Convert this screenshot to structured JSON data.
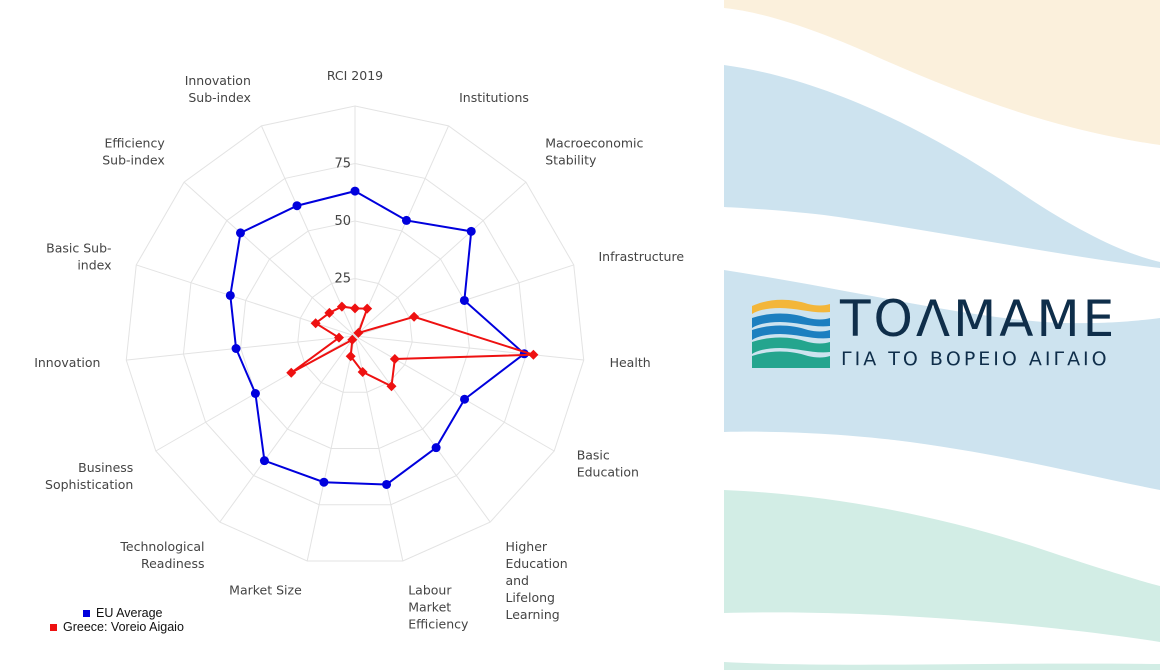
{
  "chart_data": {
    "type": "radar",
    "axes": [
      "RCI 2019",
      "Institutions",
      "Macroeconomic\nStability",
      "Infrastructure",
      "Health",
      "Basic\nEducation",
      "Higher\nEducation\nand\nLifelong\nLearning",
      "Labour\nMarket\nEfficiency",
      "Market Size",
      "Technological\nReadiness",
      "Business\nSophistication",
      "Innovation",
      "Basic Sub-\nindex",
      "Efficiency\nSub-index",
      "Innovation\nSub-index"
    ],
    "ticks": [
      "25",
      "50",
      "75"
    ],
    "rlim": [
      0,
      100
    ],
    "series": [
      {
        "name": "EU Average",
        "color": "#0000dd",
        "marker": "circle",
        "values": [
          63,
          55,
          68,
          50,
          74,
          55,
          60,
          66,
          65,
          67,
          50,
          52,
          57,
          67,
          62
        ]
      },
      {
        "name": "Greece: Voreio Aigaio",
        "color": "#ee1111",
        "marker": "diamond",
        "values": [
          12,
          13,
          2,
          27,
          78,
          20,
          27,
          16,
          9,
          2,
          32,
          7,
          18,
          15,
          14
        ]
      }
    ],
    "legend_position": "bottom-left"
  },
  "brand": {
    "title": "ΤΟΛΜΑΜΕ",
    "subtitle": "ΓΙΑ ΤΟ ΒΟΡΕΙΟ ΑΙΓΑΙΟ",
    "colors": [
      "#f3b63a",
      "#1c7fc0",
      "#24a58e",
      "#0f2e4a"
    ]
  },
  "decor": {
    "colors": [
      "#fbf0dc",
      "#cde3ef",
      "#d2ede5"
    ]
  }
}
